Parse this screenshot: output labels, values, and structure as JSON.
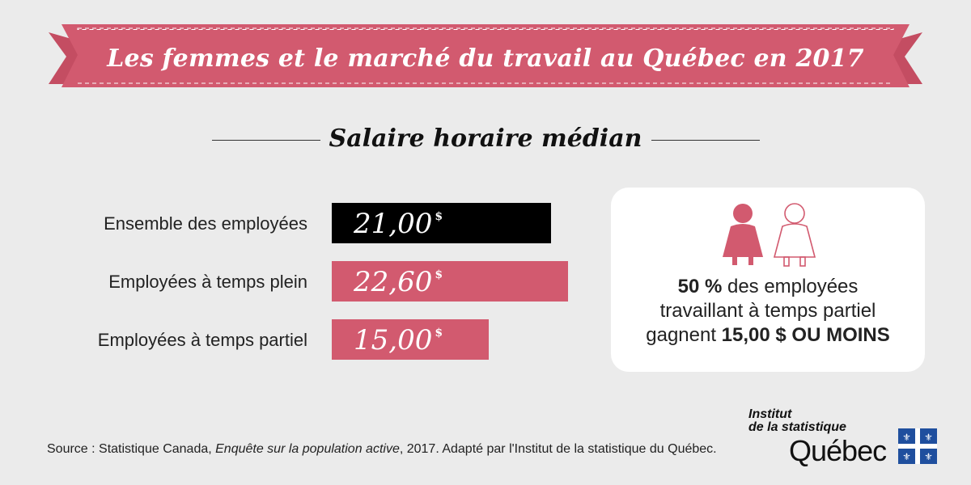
{
  "title": "Les femmes et le marché du travail au Québec en 2017",
  "subtitle": "Salaire horaire médian",
  "colors": {
    "banner": "#d25a6f",
    "bar_total": "#000000",
    "bar_accent": "#d25a6f",
    "background": "#ebebeb"
  },
  "chart_data": {
    "type": "bar",
    "orientation": "horizontal",
    "title": "Salaire horaire médian",
    "categories": [
      "Ensemble des employées",
      "Employées à temps plein",
      "Employées à temps partiel"
    ],
    "values": [
      21.0,
      22.6,
      15.0
    ],
    "value_labels": [
      "21,00",
      "22,60",
      "15,00"
    ],
    "unit": "$",
    "bar_colors": [
      "#000000",
      "#d25a6f",
      "#d25a6f"
    ],
    "xlim": [
      0,
      22.6
    ],
    "grid": false
  },
  "card": {
    "line1_bold": "50 %",
    "line1_rest": " des employées",
    "line2": "travaillant à temps partiel",
    "line3_start": "gagnent ",
    "line3_bold": "15,00 $ OU MOINS",
    "icons": [
      "woman-filled-icon",
      "woman-outline-icon"
    ]
  },
  "source": {
    "prefix": "Source : Statistique Canada, ",
    "italic": "Enquête sur la population active",
    "suffix": ", 2017. Adapté par l'Institut de la statistique du Québec."
  },
  "logo": {
    "line1": "Institut",
    "line2": "de la statistique",
    "main": "Québec"
  }
}
